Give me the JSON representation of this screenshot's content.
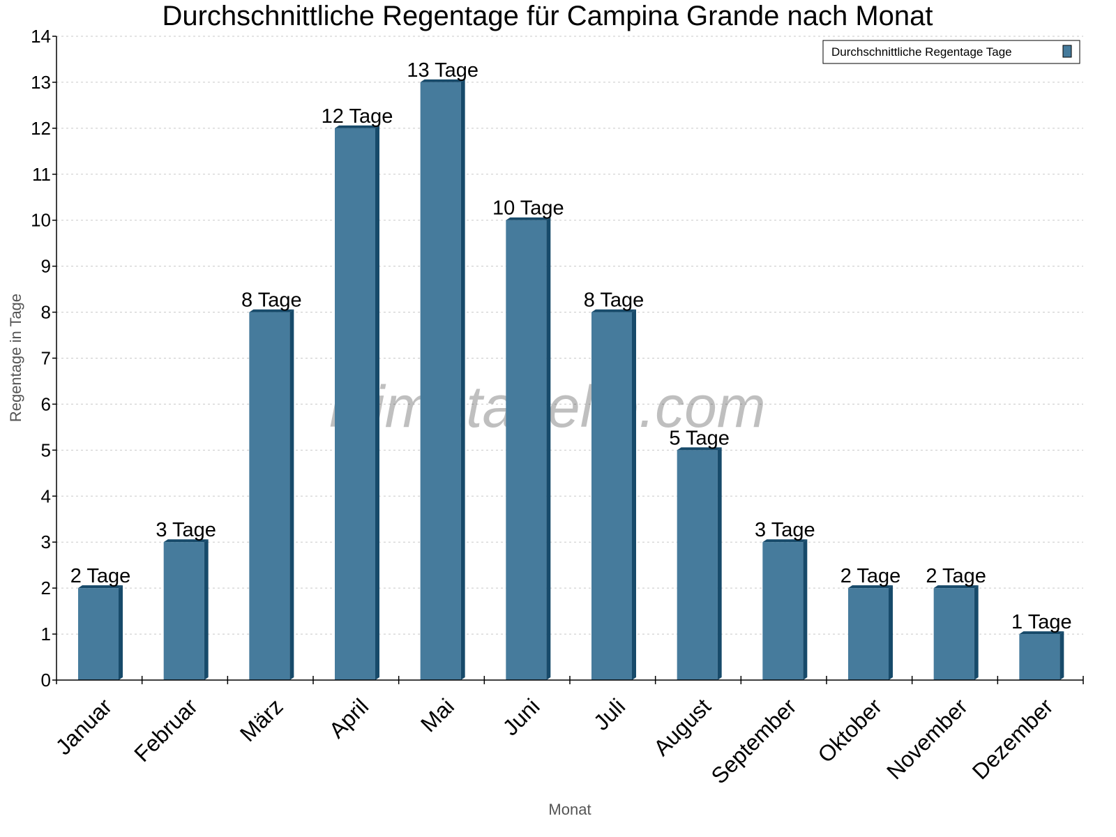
{
  "chart_data": {
    "type": "bar",
    "title": "Durchschnittliche Regentage für Campina Grande nach Monat",
    "xlabel": "Monat",
    "ylabel": "Regentage in Tage",
    "ylim": [
      0,
      14
    ],
    "yticks": [
      0,
      1,
      2,
      3,
      4,
      5,
      6,
      7,
      8,
      9,
      10,
      11,
      12,
      13,
      14
    ],
    "grid": true,
    "legend_position": "top-right",
    "categories": [
      "Januar",
      "Februar",
      "März",
      "April",
      "Mai",
      "Juni",
      "Juli",
      "August",
      "September",
      "Oktober",
      "November",
      "Dezember"
    ],
    "series": [
      {
        "name": "Durchschnittliche Regentage Tage",
        "values": [
          2,
          3,
          8,
          12,
          13,
          10,
          8,
          5,
          3,
          2,
          2,
          1
        ]
      }
    ],
    "data_labels": [
      "2 Tage",
      "3 Tage",
      "8 Tage",
      "12 Tage",
      "13 Tage",
      "10 Tage",
      "8 Tage",
      "5 Tage",
      "3 Tage",
      "2 Tage",
      "2 Tage",
      "1 Tage"
    ],
    "watermark": "klimatabelle.com",
    "colors": {
      "bar_front": "#467b9c",
      "bar_side": "#174a6a",
      "grid": "#c8c8c8"
    }
  }
}
